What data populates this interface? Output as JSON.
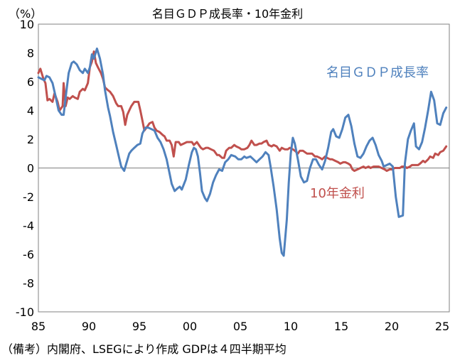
{
  "chart_data": {
    "type": "line",
    "title": "名目ＧＤＰ成長率・10年金利",
    "ylabel": "（%）",
    "footnote": "（備考）内閣府、LSEGにより作成 GDPは４四半期平均",
    "ylim": [
      -10,
      10
    ],
    "xlim": [
      1985,
      2025.7
    ],
    "y_ticks": [
      "10",
      "8",
      "6",
      "4",
      "2",
      "0",
      "-2",
      "-4",
      "-6",
      "-8",
      "-10"
    ],
    "x_ticks": [
      "85",
      "90",
      "95",
      "00",
      "05",
      "10",
      "15",
      "20",
      "25"
    ],
    "grid": false,
    "series": [
      {
        "name": "名目ＧＤＰ成長率",
        "color": "#4f81bd",
        "points": [
          [
            1985.0,
            6.3
          ],
          [
            1985.3,
            6.2
          ],
          [
            1985.6,
            6.1
          ],
          [
            1985.8,
            6.4
          ],
          [
            1986.1,
            6.3
          ],
          [
            1986.4,
            5.9
          ],
          [
            1986.7,
            5.0
          ],
          [
            1987.0,
            4.0
          ],
          [
            1987.3,
            3.7
          ],
          [
            1987.5,
            3.7
          ],
          [
            1987.8,
            5.5
          ],
          [
            1988.0,
            6.6
          ],
          [
            1988.3,
            7.3
          ],
          [
            1988.5,
            7.4
          ],
          [
            1988.8,
            7.2
          ],
          [
            1989.1,
            6.8
          ],
          [
            1989.4,
            6.6
          ],
          [
            1989.6,
            6.9
          ],
          [
            1989.9,
            6.6
          ],
          [
            1990.1,
            7.0
          ],
          [
            1990.3,
            7.9
          ],
          [
            1990.5,
            7.6
          ],
          [
            1990.8,
            8.3
          ],
          [
            1991.1,
            7.6
          ],
          [
            1991.4,
            6.5
          ],
          [
            1991.6,
            5.4
          ],
          [
            1991.9,
            4.2
          ],
          [
            1992.1,
            3.6
          ],
          [
            1992.4,
            2.5
          ],
          [
            1992.7,
            1.6
          ],
          [
            1993.0,
            0.7
          ],
          [
            1993.2,
            0.1
          ],
          [
            1993.5,
            -0.2
          ],
          [
            1993.7,
            0.3
          ],
          [
            1994.0,
            1.0
          ],
          [
            1994.2,
            1.2
          ],
          [
            1994.5,
            1.4
          ],
          [
            1994.8,
            1.6
          ],
          [
            1995.1,
            1.7
          ],
          [
            1995.3,
            2.4
          ],
          [
            1995.6,
            2.8
          ],
          [
            1995.9,
            2.8
          ],
          [
            1996.2,
            2.7
          ],
          [
            1996.5,
            2.6
          ],
          [
            1996.8,
            2.1
          ],
          [
            1997.1,
            1.8
          ],
          [
            1997.4,
            1.3
          ],
          [
            1997.7,
            0.6
          ],
          [
            1998.0,
            -0.4
          ],
          [
            1998.2,
            -1.1
          ],
          [
            1998.5,
            -1.6
          ],
          [
            1998.8,
            -1.4
          ],
          [
            1999.0,
            -1.3
          ],
          [
            1999.2,
            -1.5
          ],
          [
            1999.6,
            -0.8
          ],
          [
            1999.9,
            0.2
          ],
          [
            2000.2,
            1.1
          ],
          [
            2000.4,
            1.4
          ],
          [
            2000.6,
            1.3
          ],
          [
            2000.8,
            0.8
          ],
          [
            2001.0,
            -0.3
          ],
          [
            2001.2,
            -1.6
          ],
          [
            2001.5,
            -2.1
          ],
          [
            2001.7,
            -2.3
          ],
          [
            2002.0,
            -1.8
          ],
          [
            2002.3,
            -1.0
          ],
          [
            2002.6,
            -0.5
          ],
          [
            2002.9,
            -0.1
          ],
          [
            2003.2,
            -0.2
          ],
          [
            2003.5,
            0.4
          ],
          [
            2003.8,
            0.6
          ],
          [
            2004.1,
            0.9
          ],
          [
            2004.5,
            0.8
          ],
          [
            2004.8,
            0.6
          ],
          [
            2005.1,
            0.6
          ],
          [
            2005.4,
            0.8
          ],
          [
            2005.6,
            0.7
          ],
          [
            2006.0,
            0.8
          ],
          [
            2006.3,
            0.6
          ],
          [
            2006.6,
            0.4
          ],
          [
            2006.9,
            0.6
          ],
          [
            2007.2,
            0.8
          ],
          [
            2007.5,
            1.1
          ],
          [
            2007.8,
            0.9
          ],
          [
            2008.0,
            0.1
          ],
          [
            2008.3,
            -1.3
          ],
          [
            2008.6,
            -2.9
          ],
          [
            2008.9,
            -4.9
          ],
          [
            2009.1,
            -5.9
          ],
          [
            2009.3,
            -6.1
          ],
          [
            2009.6,
            -3.6
          ],
          [
            2009.8,
            -1.0
          ],
          [
            2010.0,
            1.0
          ],
          [
            2010.2,
            2.1
          ],
          [
            2010.4,
            1.7
          ],
          [
            2010.7,
            0.6
          ],
          [
            2011.0,
            -0.6
          ],
          [
            2011.3,
            -1.0
          ],
          [
            2011.6,
            -0.9
          ],
          [
            2011.9,
            0.0
          ],
          [
            2012.2,
            0.6
          ],
          [
            2012.5,
            0.6
          ],
          [
            2012.8,
            0.2
          ],
          [
            2013.1,
            -0.1
          ],
          [
            2013.4,
            0.5
          ],
          [
            2013.7,
            1.4
          ],
          [
            2014.0,
            2.5
          ],
          [
            2014.2,
            2.7
          ],
          [
            2014.5,
            2.2
          ],
          [
            2014.8,
            2.1
          ],
          [
            2015.1,
            2.7
          ],
          [
            2015.4,
            3.5
          ],
          [
            2015.7,
            3.7
          ],
          [
            2016.0,
            2.9
          ],
          [
            2016.3,
            1.7
          ],
          [
            2016.6,
            0.8
          ],
          [
            2016.9,
            0.7
          ],
          [
            2017.2,
            1.0
          ],
          [
            2017.5,
            1.5
          ],
          [
            2017.8,
            1.9
          ],
          [
            2018.1,
            2.1
          ],
          [
            2018.4,
            1.6
          ],
          [
            2018.7,
            0.9
          ],
          [
            2019.0,
            0.5
          ],
          [
            2019.2,
            0.1
          ],
          [
            2019.5,
            0.2
          ],
          [
            2019.8,
            0.3
          ],
          [
            2020.1,
            0.1
          ],
          [
            2020.4,
            -2.0
          ],
          [
            2020.7,
            -3.4
          ],
          [
            2021.1,
            -3.3
          ],
          [
            2021.3,
            0.3
          ],
          [
            2021.6,
            2.0
          ],
          [
            2021.9,
            2.6
          ],
          [
            2022.2,
            3.1
          ],
          [
            2022.4,
            1.5
          ],
          [
            2022.7,
            1.3
          ],
          [
            2023.0,
            1.8
          ],
          [
            2023.3,
            2.8
          ],
          [
            2023.6,
            4.0
          ],
          [
            2023.9,
            5.3
          ],
          [
            2024.2,
            4.7
          ],
          [
            2024.5,
            3.1
          ],
          [
            2024.8,
            3.0
          ],
          [
            2025.1,
            3.8
          ],
          [
            2025.4,
            4.2
          ]
        ]
      },
      {
        "name": "10年金利",
        "color": "#c0504d",
        "points": [
          [
            1985.0,
            6.6
          ],
          [
            1985.2,
            6.9
          ],
          [
            1985.5,
            6.2
          ],
          [
            1985.7,
            5.9
          ],
          [
            1985.9,
            4.7
          ],
          [
            1986.1,
            4.8
          ],
          [
            1986.4,
            4.6
          ],
          [
            1986.6,
            5.2
          ],
          [
            1986.9,
            4.6
          ],
          [
            1987.1,
            4.0
          ],
          [
            1987.4,
            4.3
          ],
          [
            1987.5,
            5.9
          ],
          [
            1987.7,
            4.3
          ],
          [
            1987.9,
            4.9
          ],
          [
            1988.1,
            4.8
          ],
          [
            1988.4,
            5.0
          ],
          [
            1988.6,
            4.9
          ],
          [
            1988.9,
            4.8
          ],
          [
            1989.1,
            5.3
          ],
          [
            1989.4,
            5.5
          ],
          [
            1989.6,
            5.4
          ],
          [
            1989.9,
            5.9
          ],
          [
            1990.1,
            7.0
          ],
          [
            1990.3,
            7.4
          ],
          [
            1990.5,
            8.1
          ],
          [
            1990.7,
            7.3
          ],
          [
            1990.9,
            7.0
          ],
          [
            1991.2,
            6.6
          ],
          [
            1991.4,
            6.2
          ],
          [
            1991.6,
            5.6
          ],
          [
            1991.9,
            5.4
          ],
          [
            1992.1,
            5.3
          ],
          [
            1992.4,
            5.0
          ],
          [
            1992.7,
            4.5
          ],
          [
            1992.9,
            4.3
          ],
          [
            1993.2,
            4.3
          ],
          [
            1993.4,
            3.9
          ],
          [
            1993.6,
            3.0
          ],
          [
            1993.8,
            3.7
          ],
          [
            1994.0,
            4.0
          ],
          [
            1994.2,
            4.3
          ],
          [
            1994.5,
            4.6
          ],
          [
            1994.7,
            4.6
          ],
          [
            1994.9,
            4.6
          ],
          [
            1995.1,
            4.0
          ],
          [
            1995.3,
            3.3
          ],
          [
            1995.5,
            2.6
          ],
          [
            1995.8,
            2.9
          ],
          [
            1996.0,
            3.1
          ],
          [
            1996.3,
            3.2
          ],
          [
            1996.5,
            2.8
          ],
          [
            1996.7,
            2.6
          ],
          [
            1997.0,
            2.5
          ],
          [
            1997.3,
            2.3
          ],
          [
            1997.5,
            2.2
          ],
          [
            1997.7,
            1.9
          ],
          [
            1998.0,
            1.9
          ],
          [
            1998.2,
            1.6
          ],
          [
            1998.4,
            0.8
          ],
          [
            1998.6,
            1.8
          ],
          [
            1998.9,
            1.8
          ],
          [
            1999.1,
            1.6
          ],
          [
            1999.4,
            1.7
          ],
          [
            1999.7,
            1.8
          ],
          [
            1999.9,
            1.8
          ],
          [
            2000.2,
            1.8
          ],
          [
            2000.4,
            1.6
          ],
          [
            2000.7,
            1.8
          ],
          [
            2000.9,
            1.6
          ],
          [
            2001.1,
            1.4
          ],
          [
            2001.3,
            1.3
          ],
          [
            2001.6,
            1.4
          ],
          [
            2001.8,
            1.4
          ],
          [
            2002.1,
            1.3
          ],
          [
            2002.4,
            1.2
          ],
          [
            2002.7,
            0.9
          ],
          [
            2002.9,
            0.9
          ],
          [
            2003.2,
            0.7
          ],
          [
            2003.4,
            0.7
          ],
          [
            2003.6,
            1.2
          ],
          [
            2003.9,
            1.4
          ],
          [
            2004.1,
            1.4
          ],
          [
            2004.4,
            1.6
          ],
          [
            2004.6,
            1.5
          ],
          [
            2004.9,
            1.4
          ],
          [
            2005.1,
            1.3
          ],
          [
            2005.4,
            1.3
          ],
          [
            2005.7,
            1.4
          ],
          [
            2005.9,
            1.6
          ],
          [
            2006.1,
            1.9
          ],
          [
            2006.4,
            1.6
          ],
          [
            2006.6,
            1.6
          ],
          [
            2006.9,
            1.7
          ],
          [
            2007.1,
            1.7
          ],
          [
            2007.3,
            1.8
          ],
          [
            2007.6,
            1.9
          ],
          [
            2007.8,
            1.6
          ],
          [
            2008.1,
            1.5
          ],
          [
            2008.3,
            1.6
          ],
          [
            2008.6,
            1.5
          ],
          [
            2008.9,
            1.2
          ],
          [
            2009.1,
            1.4
          ],
          [
            2009.4,
            1.3
          ],
          [
            2009.7,
            1.3
          ],
          [
            2009.9,
            1.4
          ],
          [
            2010.2,
            1.3
          ],
          [
            2010.4,
            1.2
          ],
          [
            2010.7,
            1.0
          ],
          [
            2010.9,
            1.2
          ],
          [
            2011.2,
            1.2
          ],
          [
            2011.4,
            1.1
          ],
          [
            2011.6,
            1.0
          ],
          [
            2011.9,
            1.0
          ],
          [
            2012.1,
            1.0
          ],
          [
            2012.4,
            0.8
          ],
          [
            2012.6,
            0.8
          ],
          [
            2012.9,
            0.7
          ],
          [
            2013.1,
            0.6
          ],
          [
            2013.4,
            0.8
          ],
          [
            2013.6,
            0.7
          ],
          [
            2013.9,
            0.6
          ],
          [
            2014.1,
            0.6
          ],
          [
            2014.4,
            0.5
          ],
          [
            2014.7,
            0.4
          ],
          [
            2014.9,
            0.3
          ],
          [
            2015.2,
            0.4
          ],
          [
            2015.4,
            0.4
          ],
          [
            2015.7,
            0.3
          ],
          [
            2015.9,
            0.2
          ],
          [
            2016.1,
            -0.1
          ],
          [
            2016.3,
            -0.2
          ],
          [
            2016.6,
            -0.1
          ],
          [
            2016.9,
            0.0
          ],
          [
            2017.2,
            0.1
          ],
          [
            2017.4,
            0.0
          ],
          [
            2017.7,
            0.1
          ],
          [
            2017.9,
            0.0
          ],
          [
            2018.2,
            0.1
          ],
          [
            2018.5,
            0.1
          ],
          [
            2018.7,
            0.1
          ],
          [
            2019.0,
            0.0
          ],
          [
            2019.3,
            -0.1
          ],
          [
            2019.5,
            -0.2
          ],
          [
            2019.8,
            -0.1
          ],
          [
            2020.0,
            -0.1
          ],
          [
            2020.3,
            0.0
          ],
          [
            2020.5,
            0.0
          ],
          [
            2020.8,
            0.0
          ],
          [
            2021.0,
            0.1
          ],
          [
            2021.3,
            0.1
          ],
          [
            2021.5,
            0.0
          ],
          [
            2021.8,
            0.1
          ],
          [
            2022.0,
            0.2
          ],
          [
            2022.3,
            0.2
          ],
          [
            2022.6,
            0.2
          ],
          [
            2022.8,
            0.3
          ],
          [
            2023.1,
            0.5
          ],
          [
            2023.3,
            0.4
          ],
          [
            2023.6,
            0.6
          ],
          [
            2023.8,
            0.8
          ],
          [
            2024.1,
            0.7
          ],
          [
            2024.3,
            1.0
          ],
          [
            2024.6,
            0.9
          ],
          [
            2024.8,
            1.1
          ],
          [
            2025.1,
            1.2
          ],
          [
            2025.4,
            1.5
          ]
        ]
      }
    ]
  }
}
